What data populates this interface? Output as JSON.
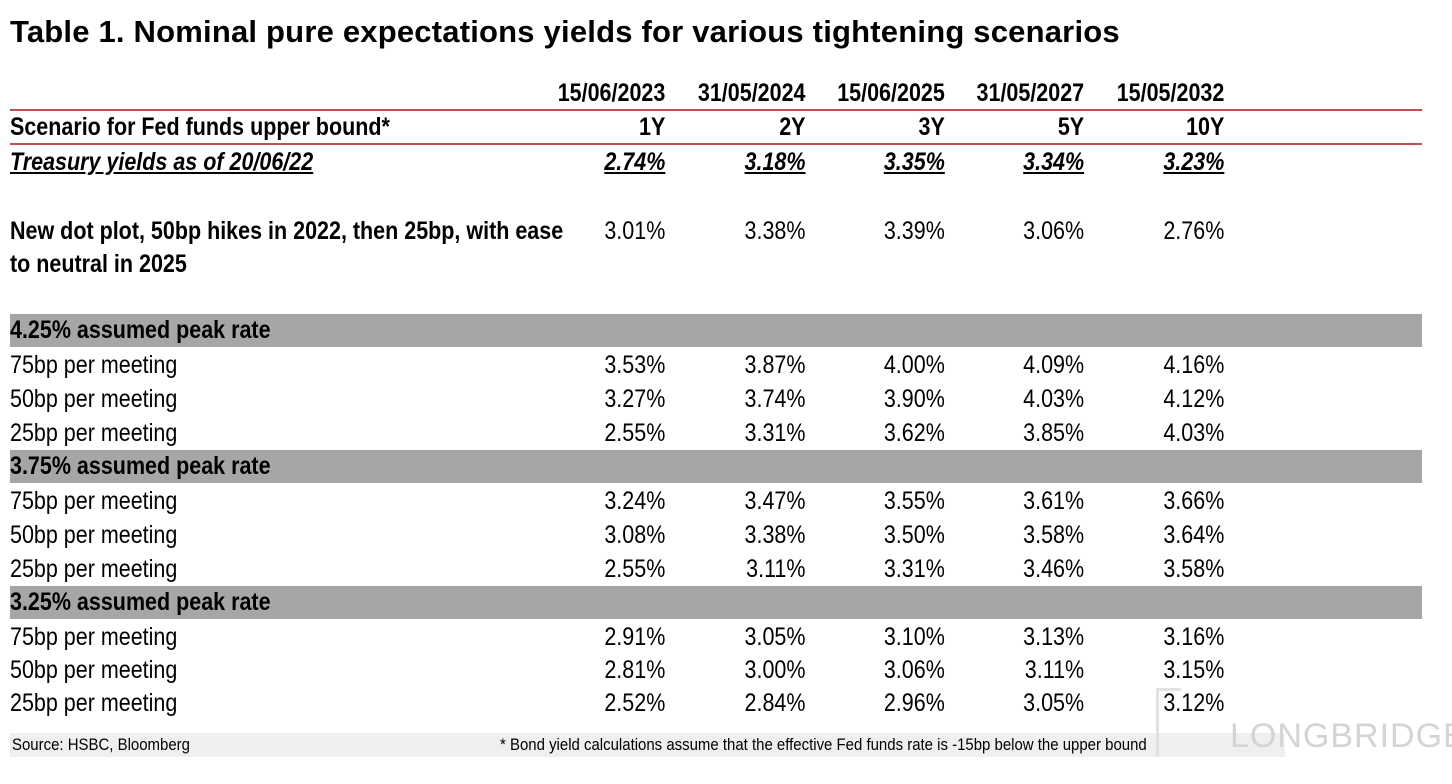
{
  "title": "Table 1. Nominal pure expectations yields for various tightening scenarios",
  "dates": [
    "15/06/2023",
    "31/05/2024",
    "15/06/2025",
    "31/05/2027",
    "15/05/2032"
  ],
  "scenario_header": {
    "label": "Scenario for Fed funds upper bound*",
    "tenors": [
      "1Y",
      "2Y",
      "3Y",
      "5Y",
      "10Y"
    ]
  },
  "treasury": {
    "label": "Treasury yields as of 20/06/22",
    "values": [
      "2.74%",
      "3.18%",
      "3.35%",
      "3.34%",
      "3.23%"
    ]
  },
  "dot_plot": {
    "label_line1": "New dot plot, 50bp hikes in 2022, then 25bp, with ease",
    "label_line2": "to neutral in 2025",
    "values": [
      "3.01%",
      "3.38%",
      "3.39%",
      "3.06%",
      "2.76%"
    ]
  },
  "sections": [
    {
      "title": "4.25% assumed peak rate",
      "rows": [
        {
          "label": "75bp per meeting",
          "values": [
            "3.53%",
            "3.87%",
            "4.00%",
            "4.09%",
            "4.16%"
          ]
        },
        {
          "label": "50bp per meeting",
          "values": [
            "3.27%",
            "3.74%",
            "3.90%",
            "4.03%",
            "4.12%"
          ]
        },
        {
          "label": "25bp per meeting",
          "values": [
            "2.55%",
            "3.31%",
            "3.62%",
            "3.85%",
            "4.03%"
          ]
        }
      ]
    },
    {
      "title": "3.75% assumed peak rate",
      "rows": [
        {
          "label": "75bp per meeting",
          "values": [
            "3.24%",
            "3.47%",
            "3.55%",
            "3.61%",
            "3.66%"
          ]
        },
        {
          "label": "50bp per meeting",
          "values": [
            "3.08%",
            "3.38%",
            "3.50%",
            "3.58%",
            "3.64%"
          ]
        },
        {
          "label": "25bp per meeting",
          "values": [
            "2.55%",
            "3.11%",
            "3.31%",
            "3.46%",
            "3.58%"
          ]
        }
      ]
    },
    {
      "title": "3.25% assumed peak rate",
      "rows": [
        {
          "label": "75bp per meeting",
          "values": [
            "2.91%",
            "3.05%",
            "3.10%",
            "3.13%",
            "3.16%"
          ]
        },
        {
          "label": "50bp per meeting",
          "values": [
            "2.81%",
            "3.00%",
            "3.06%",
            "3.11%",
            "3.15%"
          ]
        },
        {
          "label": "25bp per meeting",
          "values": [
            "2.52%",
            "2.84%",
            "2.96%",
            "3.05%",
            "3.12%"
          ]
        }
      ]
    }
  ],
  "footer": {
    "source": "Source: HSBC, Bloomberg",
    "note": "* Bond yield calculations assume that the effective Fed funds rate is -15bp below the upper bound"
  },
  "watermark": "LONGBRIDGE",
  "colors": {
    "rule": "#c0504d",
    "section_band": "#a6a6a6",
    "footer_band": "#efefef"
  }
}
